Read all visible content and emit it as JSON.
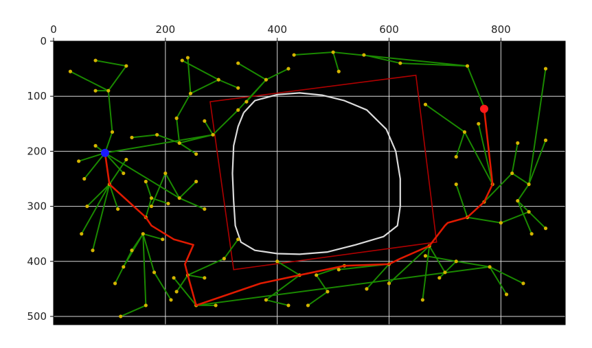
{
  "chart_data": {
    "type": "scatter",
    "subtype": "image-plot-with-path-overlay",
    "title": "",
    "xlabel": "",
    "ylabel": "",
    "xlim": [
      0,
      915
    ],
    "ylim": [
      515,
      0
    ],
    "x_axis_position": "top",
    "grid": true,
    "grid_color": "#d9d9d9",
    "background": "#000000",
    "x_ticks": [
      {
        "value": 0,
        "label": "0"
      },
      {
        "value": 200,
        "label": "200"
      },
      {
        "value": 400,
        "label": "400"
      },
      {
        "value": 600,
        "label": "600"
      },
      {
        "value": 800,
        "label": "800"
      }
    ],
    "y_ticks": [
      {
        "value": 0,
        "label": "0"
      },
      {
        "value": 100,
        "label": "100"
      },
      {
        "value": 200,
        "label": "200"
      },
      {
        "value": 300,
        "label": "300"
      },
      {
        "value": 400,
        "label": "400"
      },
      {
        "value": 500,
        "label": "500"
      }
    ],
    "colors": {
      "tree_edge": "#1a8a00",
      "tree_node": "#d4b400",
      "path": "#e01a00",
      "obstacle_box": "#b00000",
      "contour": "#dcdcdc",
      "start": "#1a1aff",
      "goal": "#ff1a1a"
    },
    "start": {
      "x": 92,
      "y": 203
    },
    "goal": {
      "x": 770,
      "y": 123
    },
    "obstacle_box": [
      [
        280,
        110
      ],
      [
        648,
        62
      ],
      [
        685,
        365
      ],
      [
        322,
        415
      ]
    ],
    "contour": [
      [
        340,
        130
      ],
      [
        360,
        108
      ],
      [
        400,
        97
      ],
      [
        440,
        94
      ],
      [
        480,
        98
      ],
      [
        520,
        108
      ],
      [
        560,
        125
      ],
      [
        595,
        160
      ],
      [
        612,
        200
      ],
      [
        620,
        250
      ],
      [
        620,
        300
      ],
      [
        615,
        335
      ],
      [
        590,
        355
      ],
      [
        540,
        370
      ],
      [
        490,
        383
      ],
      [
        440,
        387
      ],
      [
        400,
        386
      ],
      [
        360,
        380
      ],
      [
        335,
        365
      ],
      [
        325,
        335
      ],
      [
        322,
        290
      ],
      [
        320,
        240
      ],
      [
        322,
        190
      ],
      [
        330,
        155
      ],
      [
        340,
        130
      ]
    ],
    "path": [
      [
        770,
        123
      ],
      [
        785,
        260
      ],
      [
        770,
        292
      ],
      [
        740,
        320
      ],
      [
        705,
        330
      ],
      [
        700,
        335
      ],
      [
        672,
        372
      ],
      [
        620,
        395
      ],
      [
        600,
        405
      ],
      [
        520,
        408
      ],
      [
        440,
        425
      ],
      [
        370,
        440
      ],
      [
        255,
        480
      ],
      [
        240,
        425
      ],
      [
        235,
        405
      ],
      [
        250,
        370
      ],
      [
        215,
        360
      ],
      [
        175,
        335
      ],
      [
        165,
        320
      ],
      [
        100,
        260
      ],
      [
        92,
        203
      ]
    ],
    "tree_edges": [
      [
        [
          92,
          203
        ],
        [
          75,
          190
        ]
      ],
      [
        [
          92,
          203
        ],
        [
          55,
          250
        ]
      ],
      [
        [
          92,
          203
        ],
        [
          105,
          165
        ]
      ],
      [
        [
          92,
          203
        ],
        [
          125,
          240
        ]
      ],
      [
        [
          92,
          203
        ],
        [
          45,
          218
        ]
      ],
      [
        [
          92,
          203
        ],
        [
          285,
          170
        ]
      ],
      [
        [
          105,
          165
        ],
        [
          98,
          90
        ]
      ],
      [
        [
          98,
          90
        ],
        [
          75,
          90
        ]
      ],
      [
        [
          98,
          90
        ],
        [
          30,
          55
        ]
      ],
      [
        [
          98,
          90
        ],
        [
          130,
          45
        ]
      ],
      [
        [
          130,
          45
        ],
        [
          75,
          35
        ]
      ],
      [
        [
          92,
          203
        ],
        [
          225,
          285
        ]
      ],
      [
        [
          225,
          285
        ],
        [
          255,
          255
        ]
      ],
      [
        [
          225,
          285
        ],
        [
          200,
          240
        ]
      ],
      [
        [
          225,
          285
        ],
        [
          270,
          305
        ]
      ],
      [
        [
          200,
          240
        ],
        [
          175,
          300
        ]
      ],
      [
        [
          285,
          170
        ],
        [
          270,
          145
        ]
      ],
      [
        [
          285,
          170
        ],
        [
          330,
          125
        ]
      ],
      [
        [
          330,
          125
        ],
        [
          380,
          70
        ]
      ],
      [
        [
          380,
          70
        ],
        [
          330,
          40
        ]
      ],
      [
        [
          380,
          70
        ],
        [
          420,
          50
        ]
      ],
      [
        [
          380,
          70
        ],
        [
          345,
          110
        ]
      ],
      [
        [
          285,
          170
        ],
        [
          225,
          185
        ]
      ],
      [
        [
          225,
          185
        ],
        [
          185,
          170
        ]
      ],
      [
        [
          225,
          185
        ],
        [
          220,
          140
        ]
      ],
      [
        [
          225,
          185
        ],
        [
          255,
          205
        ]
      ],
      [
        [
          185,
          170
        ],
        [
          140,
          175
        ]
      ],
      [
        [
          220,
          140
        ],
        [
          245,
          95
        ]
      ],
      [
        [
          245,
          95
        ],
        [
          295,
          70
        ]
      ],
      [
        [
          245,
          95
        ],
        [
          240,
          30
        ]
      ],
      [
        [
          295,
          70
        ],
        [
          230,
          35
        ]
      ],
      [
        [
          295,
          70
        ],
        [
          330,
          85
        ]
      ],
      [
        [
          100,
          260
        ],
        [
          60,
          300
        ]
      ],
      [
        [
          100,
          260
        ],
        [
          115,
          305
        ]
      ],
      [
        [
          100,
          260
        ],
        [
          70,
          380
        ]
      ],
      [
        [
          100,
          260
        ],
        [
          50,
          350
        ]
      ],
      [
        [
          100,
          260
        ],
        [
          130,
          215
        ]
      ],
      [
        [
          165,
          320
        ],
        [
          175,
          285
        ]
      ],
      [
        [
          175,
          285
        ],
        [
          165,
          255
        ]
      ],
      [
        [
          175,
          285
        ],
        [
          205,
          295
        ]
      ],
      [
        [
          160,
          350
        ],
        [
          140,
          380
        ]
      ],
      [
        [
          160,
          350
        ],
        [
          125,
          410
        ]
      ],
      [
        [
          160,
          350
        ],
        [
          195,
          360
        ]
      ],
      [
        [
          160,
          350
        ],
        [
          165,
          480
        ]
      ],
      [
        [
          160,
          350
        ],
        [
          180,
          420
        ]
      ],
      [
        [
          140,
          380
        ],
        [
          110,
          440
        ]
      ],
      [
        [
          165,
          480
        ],
        [
          120,
          500
        ]
      ],
      [
        [
          180,
          420
        ],
        [
          210,
          470
        ]
      ],
      [
        [
          240,
          425
        ],
        [
          270,
          430
        ]
      ],
      [
        [
          240,
          425
        ],
        [
          220,
          455
        ]
      ],
      [
        [
          240,
          425
        ],
        [
          305,
          395
        ]
      ],
      [
        [
          305,
          395
        ],
        [
          330,
          360
        ]
      ],
      [
        [
          255,
          480
        ],
        [
          215,
          430
        ]
      ],
      [
        [
          255,
          480
        ],
        [
          290,
          480
        ]
      ],
      [
        [
          255,
          480
        ],
        [
          780,
          410
        ]
      ],
      [
        [
          780,
          410
        ],
        [
          810,
          460
        ]
      ],
      [
        [
          780,
          410
        ],
        [
          720,
          400
        ]
      ],
      [
        [
          780,
          410
        ],
        [
          840,
          440
        ]
      ],
      [
        [
          720,
          400
        ],
        [
          690,
          430
        ]
      ],
      [
        [
          720,
          400
        ],
        [
          665,
          390
        ]
      ],
      [
        [
          672,
          372
        ],
        [
          660,
          470
        ]
      ],
      [
        [
          672,
          372
        ],
        [
          700,
          420
        ]
      ],
      [
        [
          672,
          372
        ],
        [
          600,
          440
        ]
      ],
      [
        [
          600,
          405
        ],
        [
          560,
          450
        ]
      ],
      [
        [
          600,
          405
        ],
        [
          510,
          415
        ]
      ],
      [
        [
          520,
          408
        ],
        [
          470,
          425
        ]
      ],
      [
        [
          470,
          425
        ],
        [
          490,
          455
        ]
      ],
      [
        [
          490,
          455
        ],
        [
          455,
          480
        ]
      ],
      [
        [
          440,
          425
        ],
        [
          400,
          400
        ]
      ],
      [
        [
          440,
          425
        ],
        [
          380,
          470
        ]
      ],
      [
        [
          380,
          470
        ],
        [
          420,
          480
        ]
      ],
      [
        [
          770,
          292
        ],
        [
          820,
          240
        ]
      ],
      [
        [
          820,
          240
        ],
        [
          830,
          185
        ]
      ],
      [
        [
          820,
          240
        ],
        [
          850,
          260
        ]
      ],
      [
        [
          850,
          260
        ],
        [
          880,
          50
        ]
      ],
      [
        [
          850,
          260
        ],
        [
          880,
          180
        ]
      ],
      [
        [
          850,
          260
        ],
        [
          830,
          290
        ]
      ],
      [
        [
          830,
          290
        ],
        [
          855,
          350
        ]
      ],
      [
        [
          830,
          290
        ],
        [
          880,
          340
        ]
      ],
      [
        [
          785,
          260
        ],
        [
          735,
          165
        ]
      ],
      [
        [
          735,
          165
        ],
        [
          665,
          115
        ]
      ],
      [
        [
          735,
          165
        ],
        [
          720,
          210
        ]
      ],
      [
        [
          785,
          260
        ],
        [
          760,
          150
        ]
      ],
      [
        [
          740,
          320
        ],
        [
          720,
          260
        ]
      ],
      [
        [
          740,
          320
        ],
        [
          800,
          330
        ]
      ],
      [
        [
          800,
          330
        ],
        [
          850,
          310
        ]
      ],
      [
        [
          770,
          120
        ],
        [
          740,
          45
        ]
      ],
      [
        [
          740,
          45
        ],
        [
          500,
          20
        ]
      ],
      [
        [
          740,
          45
        ],
        [
          620,
          40
        ]
      ],
      [
        [
          500,
          20
        ],
        [
          510,
          55
        ]
      ],
      [
        [
          620,
          40
        ],
        [
          555,
          25
        ]
      ],
      [
        [
          500,
          20
        ],
        [
          430,
          25
        ]
      ]
    ]
  }
}
